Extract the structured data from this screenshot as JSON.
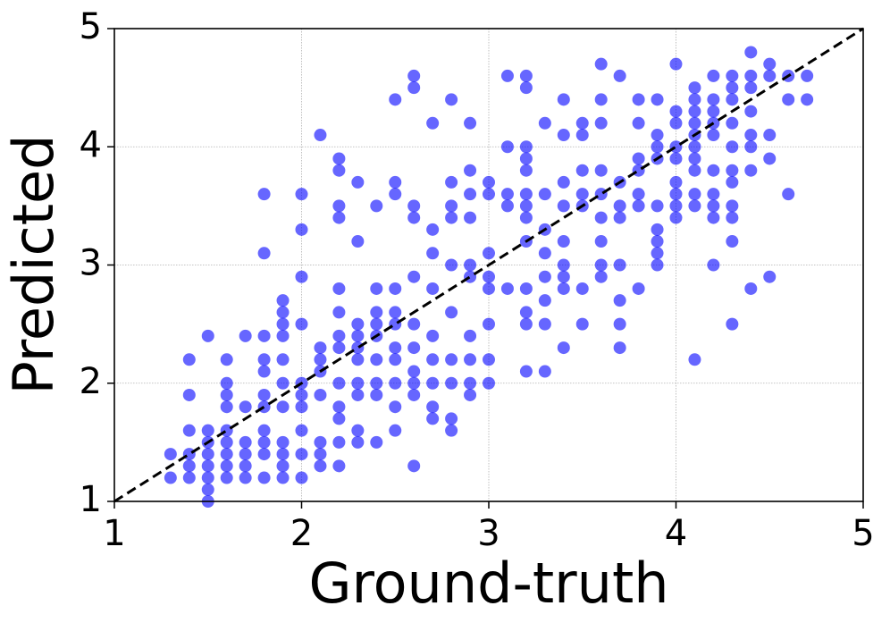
{
  "chart_data": {
    "type": "scatter",
    "xlabel": "Ground-truth",
    "ylabel": "Predicted",
    "xlim": [
      1,
      5
    ],
    "ylim": [
      1,
      5
    ],
    "xticks": [
      1,
      2,
      3,
      4,
      5
    ],
    "yticks": [
      1,
      2,
      3,
      4,
      5
    ],
    "grid": true,
    "color": "#0000ff",
    "diagonal": true,
    "x": [
      1.3,
      1.3,
      1.4,
      1.4,
      1.4,
      1.4,
      1.4,
      1.4,
      1.5,
      1.5,
      1.5,
      1.5,
      1.5,
      1.5,
      1.5,
      1.5,
      1.6,
      1.6,
      1.6,
      1.6,
      1.6,
      1.6,
      1.6,
      1.6,
      1.6,
      1.7,
      1.7,
      1.7,
      1.7,
      1.7,
      1.7,
      1.8,
      1.8,
      1.8,
      1.8,
      1.8,
      1.8,
      1.8,
      1.8,
      1.8,
      1.8,
      1.8,
      1.9,
      1.9,
      1.9,
      1.9,
      1.9,
      1.9,
      1.9,
      1.9,
      1.9,
      1.9,
      1.9,
      2.0,
      2.0,
      2.0,
      2.0,
      2.0,
      2.0,
      2.0,
      2.0,
      2.0,
      2.0,
      2.1,
      2.1,
      2.1,
      2.1,
      2.1,
      2.1,
      2.1,
      2.1,
      2.2,
      2.2,
      2.2,
      2.2,
      2.2,
      2.2,
      2.2,
      2.2,
      2.2,
      2.2,
      2.2,
      2.2,
      2.2,
      2.3,
      2.3,
      2.3,
      2.3,
      2.3,
      2.3,
      2.3,
      2.3,
      2.3,
      2.3,
      2.4,
      2.4,
      2.4,
      2.4,
      2.4,
      2.4,
      2.4,
      2.4,
      2.4,
      2.5,
      2.5,
      2.5,
      2.5,
      2.5,
      2.5,
      2.5,
      2.5,
      2.5,
      2.5,
      2.5,
      2.6,
      2.6,
      2.6,
      2.6,
      2.6,
      2.6,
      2.6,
      2.6,
      2.6,
      2.6,
      2.6,
      2.7,
      2.7,
      2.7,
      2.7,
      2.7,
      2.7,
      2.7,
      2.7,
      2.7,
      2.8,
      2.8,
      2.8,
      2.8,
      2.8,
      2.8,
      2.8,
      2.8,
      2.8,
      2.8,
      2.9,
      2.9,
      2.9,
      2.9,
      2.9,
      2.9,
      2.9,
      2.9,
      2.9,
      2.9,
      3.0,
      3.0,
      3.0,
      3.0,
      3.0,
      3.0,
      3.0,
      3.0,
      3.1,
      3.1,
      3.1,
      3.1,
      3.1,
      3.2,
      3.2,
      3.2,
      3.2,
      3.2,
      3.2,
      3.2,
      3.2,
      3.2,
      3.2,
      3.2,
      3.2,
      3.2,
      3.3,
      3.3,
      3.3,
      3.3,
      3.3,
      3.3,
      3.3,
      3.3,
      3.4,
      3.4,
      3.4,
      3.4,
      3.4,
      3.4,
      3.4,
      3.4,
      3.4,
      3.5,
      3.5,
      3.5,
      3.5,
      3.5,
      3.5,
      3.5,
      3.6,
      3.6,
      3.6,
      3.6,
      3.6,
      3.6,
      3.6,
      3.6,
      3.6,
      3.7,
      3.7,
      3.7,
      3.7,
      3.7,
      3.7,
      3.7,
      3.7,
      3.8,
      3.8,
      3.8,
      3.8,
      3.8,
      3.8,
      3.8,
      3.9,
      3.9,
      3.9,
      3.9,
      3.9,
      3.9,
      3.9,
      3.9,
      3.9,
      4.0,
      4.0,
      4.0,
      4.0,
      4.0,
      4.0,
      4.0,
      4.0,
      4.0,
      4.1,
      4.1,
      4.1,
      4.1,
      4.1,
      4.1,
      4.1,
      4.1,
      4.1,
      4.1,
      4.1,
      4.2,
      4.2,
      4.2,
      4.2,
      4.2,
      4.2,
      4.2,
      4.2,
      4.2,
      4.2,
      4.3,
      4.3,
      4.3,
      4.3,
      4.3,
      4.3,
      4.3,
      4.3,
      4.3,
      4.3,
      4.3,
      4.4,
      4.4,
      4.4,
      4.4,
      4.4,
      4.4,
      4.4,
      4.4,
      4.5,
      4.5,
      4.5,
      4.5,
      4.5,
      4.6,
      4.6,
      4.6,
      4.7,
      4.7
    ],
    "values": [
      1.4,
      1.2,
      2.2,
      1.9,
      1.6,
      1.4,
      1.3,
      1.2,
      2.4,
      1.6,
      1.5,
      1.4,
      1.3,
      1.2,
      1.1,
      1.0,
      2.2,
      2.0,
      1.9,
      1.8,
      1.6,
      1.5,
      1.4,
      1.3,
      1.2,
      2.4,
      1.8,
      1.5,
      1.4,
      1.3,
      1.2,
      3.6,
      3.1,
      2.4,
      2.2,
      2.1,
      1.9,
      1.8,
      1.6,
      1.5,
      1.4,
      1.2,
      2.7,
      2.6,
      2.5,
      2.4,
      2.2,
      2.0,
      1.8,
      1.5,
      1.4,
      1.3,
      1.2,
      3.6,
      3.3,
      2.9,
      2.5,
      2.0,
      1.9,
      1.8,
      1.6,
      1.4,
      1.2,
      4.1,
      2.3,
      2.2,
      2.1,
      1.9,
      1.5,
      1.4,
      1.3,
      3.9,
      3.8,
      3.5,
      3.4,
      2.8,
      2.6,
      2.4,
      2.3,
      2.0,
      1.8,
      1.7,
      1.5,
      1.3,
      3.7,
      3.2,
      2.5,
      2.4,
      2.3,
      2.2,
      2.0,
      1.9,
      1.6,
      1.5,
      3.5,
      2.8,
      2.6,
      2.5,
      2.4,
      2.2,
      2.0,
      1.9,
      1.5,
      4.4,
      3.7,
      3.6,
      2.8,
      2.6,
      2.5,
      2.3,
      2.2,
      2.0,
      1.8,
      1.6,
      4.6,
      4.5,
      3.5,
      3.4,
      2.9,
      2.5,
      2.3,
      2.1,
      2.0,
      1.9,
      1.3,
      4.2,
      3.3,
      3.1,
      2.8,
      2.4,
      2.2,
      2.0,
      1.8,
      1.7,
      4.4,
      3.7,
      3.5,
      3.4,
      3.0,
      2.6,
      2.2,
      2.0,
      1.7,
      1.6,
      4.2,
      3.8,
      3.6,
      3.4,
      3.0,
      2.9,
      2.4,
      2.2,
      2.0,
      1.9,
      3.7,
      3.6,
      3.1,
      2.9,
      2.8,
      2.5,
      2.2,
      2.0,
      4.6,
      4.0,
      3.6,
      3.5,
      2.8,
      4.6,
      4.5,
      4.0,
      3.9,
      3.8,
      3.6,
      3.5,
      3.4,
      3.2,
      2.8,
      2.6,
      2.5,
      2.1,
      4.2,
      3.6,
      3.3,
      3.1,
      2.9,
      2.7,
      2.5,
      2.1,
      4.4,
      4.1,
      3.7,
      3.5,
      3.2,
      3.0,
      2.9,
      2.8,
      2.3,
      4.2,
      4.1,
      3.8,
      3.6,
      3.5,
      2.8,
      2.5,
      4.7,
      4.4,
      4.2,
      3.8,
      3.6,
      3.4,
      3.2,
      3.0,
      2.9,
      4.6,
      3.7,
      3.5,
      3.4,
      3.0,
      2.7,
      2.5,
      2.3,
      4.4,
      4.2,
      3.9,
      3.8,
      3.6,
      3.5,
      2.8,
      4.4,
      4.1,
      4.0,
      3.9,
      3.5,
      3.3,
      3.2,
      3.1,
      3.0,
      4.7,
      4.3,
      4.2,
      4.0,
      3.9,
      3.7,
      3.6,
      3.5,
      3.4,
      4.5,
      4.4,
      4.3,
      4.2,
      4.1,
      4.0,
      3.9,
      3.8,
      3.6,
      3.5,
      2.2,
      4.6,
      4.4,
      4.3,
      4.2,
      4.1,
      3.8,
      3.6,
      3.5,
      3.4,
      3.0,
      4.6,
      4.5,
      4.4,
      4.2,
      4.0,
      3.8,
      3.7,
      3.5,
      3.4,
      3.2,
      2.5,
      4.8,
      4.6,
      4.5,
      4.3,
      4.1,
      4.0,
      3.8,
      2.8,
      4.7,
      4.6,
      4.1,
      3.9,
      2.9,
      4.6,
      4.4,
      3.6,
      4.6,
      4.4
    ]
  }
}
